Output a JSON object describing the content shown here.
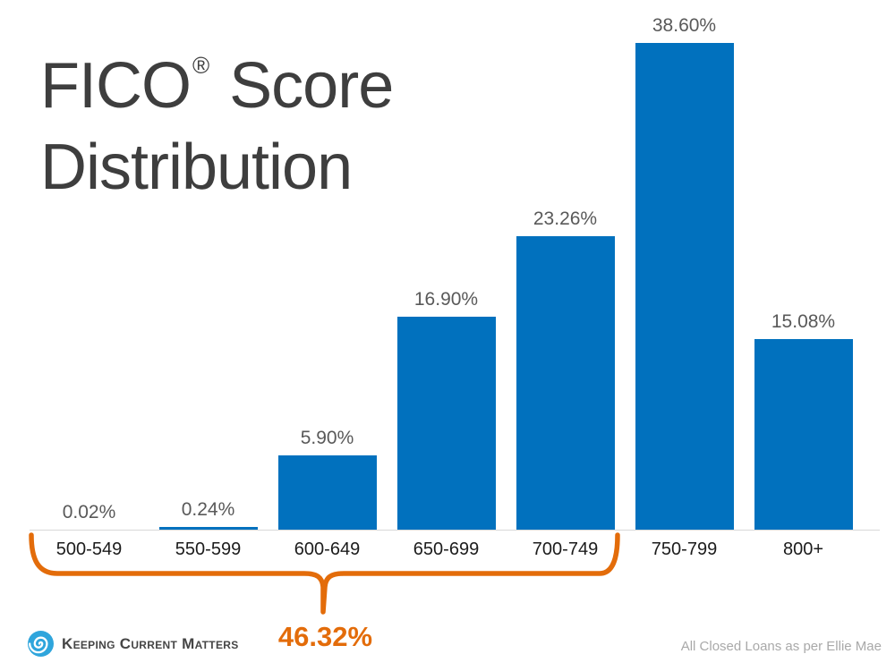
{
  "title": {
    "line1_pre": "FICO",
    "line1_sup": "®",
    "line1_post": " Score",
    "line2": "Distribution"
  },
  "chart_data": {
    "type": "bar",
    "title": "FICO Score Distribution",
    "categories": [
      "500-549",
      "550-599",
      "600-649",
      "650-699",
      "700-749",
      "750-799",
      "800+"
    ],
    "values": [
      0.02,
      0.24,
      5.9,
      16.9,
      23.26,
      38.6,
      15.08
    ],
    "value_labels": [
      "0.02%",
      "0.24%",
      "5.90%",
      "16.90%",
      "23.26%",
      "38.60%",
      "15.08%"
    ],
    "xlabel": "",
    "ylabel": "",
    "ylim": [
      0,
      40
    ],
    "grid": false,
    "legend": "none",
    "bar_color": "#0171be",
    "value_label_color": "#595959",
    "category_label_color": "#1c1c1c"
  },
  "annotation": {
    "label": "46.32%",
    "from_category": "500-549",
    "to_category": "700-749",
    "color": "#e36c0a"
  },
  "footer": {
    "logo_text": "Keeping Current Matters",
    "note": "All Closed Loans as per Ellie Mae"
  }
}
